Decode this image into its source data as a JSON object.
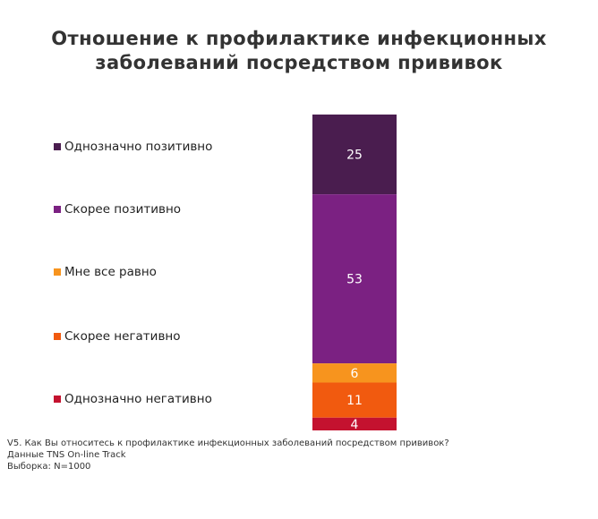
{
  "title_lines": [
    "Отношение к профилактике инфекционных",
    "заболеваний посредством прививок"
  ],
  "chart_data": {
    "type": "bar",
    "stacked": true,
    "orientation": "vertical",
    "series": [
      {
        "name": "Однозначно позитивно",
        "value": 25,
        "color": "#4a1d4f"
      },
      {
        "name": "Скорее позитивно",
        "value": 53,
        "color": "#7b2182"
      },
      {
        "name": "Мне все равно",
        "value": 6,
        "color": "#f7941e"
      },
      {
        "name": "Скорее негативно",
        "value": 11,
        "color": "#f15a0f"
      },
      {
        "name": "Однозначно негативно",
        "value": 4,
        "color": "#c4122f"
      }
    ],
    "legend": "left",
    "value_labels": true
  },
  "footnote": {
    "question": "V5. Как Вы относитесь к профилактике инфекционных заболеваний посредством прививок?",
    "source": "Данные TNS On-line Track",
    "sample": "Выборка: N=1000"
  }
}
